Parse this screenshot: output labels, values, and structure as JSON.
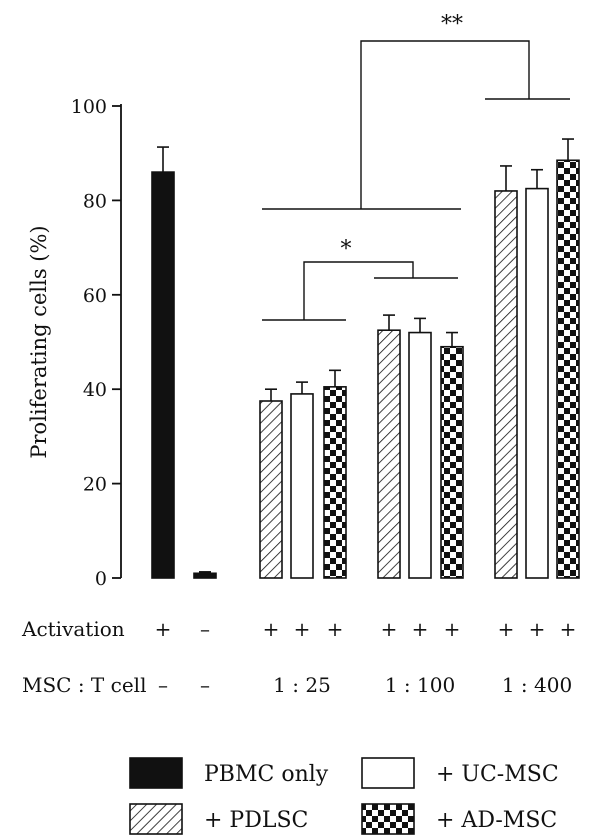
{
  "chart_data": {
    "type": "bar",
    "ylabel": "Proliferating cells (%)",
    "ylim": [
      0,
      100
    ],
    "yticks": [
      0,
      20,
      40,
      60,
      80,
      100
    ],
    "grid": false,
    "bars": [
      {
        "series": "PBMC only",
        "activation": "+",
        "ratio": "–",
        "value": 86.0,
        "error": 5.3
      },
      {
        "series": "PBMC only",
        "activation": "–",
        "ratio": "–",
        "value": 1.0,
        "error": 0.3
      },
      {
        "series": "+ PDLSC",
        "activation": "+",
        "ratio": "1 : 25",
        "value": 37.5,
        "error": 2.5
      },
      {
        "series": "+ UC-MSC",
        "activation": "+",
        "ratio": "1 : 25",
        "value": 39.0,
        "error": 2.5
      },
      {
        "series": "+ AD-MSC",
        "activation": "+",
        "ratio": "1 : 25",
        "value": 40.5,
        "error": 3.5
      },
      {
        "series": "+ PDLSC",
        "activation": "+",
        "ratio": "1 : 100",
        "value": 52.5,
        "error": 3.2
      },
      {
        "series": "+ UC-MSC",
        "activation": "+",
        "ratio": "1 : 100",
        "value": 52.0,
        "error": 3.0
      },
      {
        "series": "+ AD-MSC",
        "activation": "+",
        "ratio": "1 : 100",
        "value": 49.0,
        "error": 3.0
      },
      {
        "series": "+ PDLSC",
        "activation": "+",
        "ratio": "1 : 400",
        "value": 82.0,
        "error": 5.3
      },
      {
        "series": "+ UC-MSC",
        "activation": "+",
        "ratio": "1 : 400",
        "value": 82.5,
        "error": 4.0
      },
      {
        "series": "+ AD-MSC",
        "activation": "+",
        "ratio": "1 : 400",
        "value": 88.5,
        "error": 4.5
      }
    ],
    "rows": [
      {
        "label": "Activation",
        "marks": [
          "+",
          "–",
          "+",
          "+",
          "+",
          "+",
          "+",
          "+",
          "+",
          "+",
          "+"
        ]
      },
      {
        "label": "MSC : T cell",
        "marks": [
          "–",
          "–"
        ],
        "groups": [
          "1 : 25",
          "1 : 100",
          "1 : 400"
        ]
      }
    ],
    "significance": [
      {
        "label": "*",
        "between": [
          "1 : 25",
          "1 : 100"
        ]
      },
      {
        "label": "**",
        "between": [
          "1 : 25 and 1 : 100",
          "1 : 400"
        ]
      }
    ],
    "legend": [
      {
        "name": "PBMC only",
        "fill": "solid-black"
      },
      {
        "name": "+ UC-MSC",
        "fill": "white"
      },
      {
        "name": "+ PDLSC",
        "fill": "diagonal-hatch"
      },
      {
        "name": "+ AD-MSC",
        "fill": "checkerboard"
      }
    ],
    "colors": {
      "ink": "#111111",
      "background": "#ffffff"
    }
  }
}
